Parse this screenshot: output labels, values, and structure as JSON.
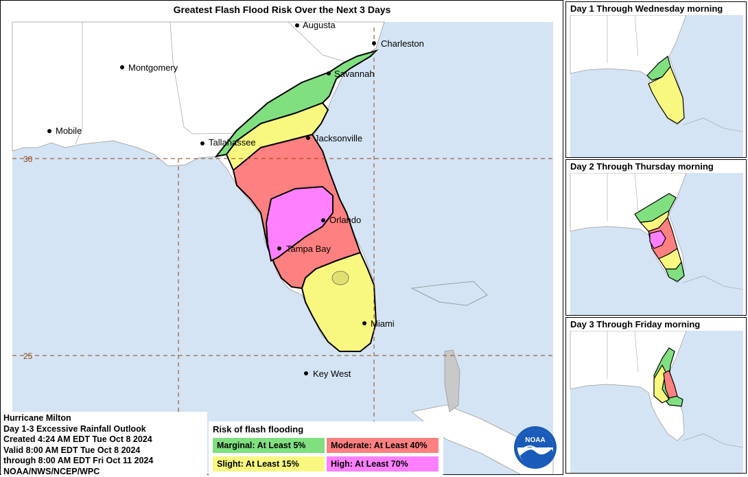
{
  "title": "Greatest Flash Flood Risk Over the Next 3 Days",
  "cities": [
    {
      "name": "Augusta"
    },
    {
      "name": "Charleston"
    },
    {
      "name": "Montgomery"
    },
    {
      "name": "Savannah"
    },
    {
      "name": "Mobile"
    },
    {
      "name": "Tallahassee"
    },
    {
      "name": "Jacksonville"
    },
    {
      "name": "Orlando"
    },
    {
      "name": "Tampa Bay"
    },
    {
      "name": "Miami"
    },
    {
      "name": "Key West"
    }
  ],
  "latitude_labels": [
    "30",
    "25"
  ],
  "info": {
    "line1": "Hurricane Milton",
    "line2": "Day 1-3 Excessive Rainfall Outlook",
    "line3": "Created 4:24 AM EDT Tue Oct 8 2024",
    "line4": "Valid 8:00 AM EDT Tue Oct 8 2024",
    "line5": "through 8:00 AM EDT Fri Oct 11 2024",
    "line6": "NOAA/NWS/NCEP/WPC"
  },
  "legend": {
    "title": "Risk of flash flooding",
    "marginal": "Marginal: At Least 5%",
    "moderate": "Moderate: At Least 40%",
    "slight": "Slight: At Least 15%",
    "high": "High: At Least 70%"
  },
  "colors": {
    "marginal": "#80e080",
    "slight": "#f8f880",
    "moderate": "#ff8080",
    "high": "#ff80ff",
    "water": "#d4e4f4",
    "land": "#ffffff",
    "grid": "#8b4513"
  },
  "panels": [
    {
      "title": "Day 1 Through Wednesday morning"
    },
    {
      "title": "Day 2 Through Thursday morning"
    },
    {
      "title": "Day 3 Through Friday morning"
    }
  ],
  "logo_text": "NOAA"
}
